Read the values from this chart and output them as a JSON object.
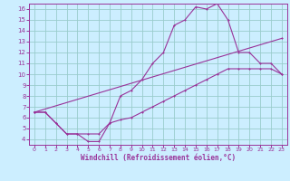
{
  "xlabel": "Windchill (Refroidissement éolien,°C)",
  "xlim": [
    -0.5,
    23.5
  ],
  "ylim": [
    3.5,
    16.5
  ],
  "xticks": [
    0,
    1,
    2,
    3,
    4,
    5,
    6,
    7,
    8,
    9,
    10,
    11,
    12,
    13,
    14,
    15,
    16,
    17,
    18,
    19,
    20,
    21,
    22,
    23
  ],
  "yticks": [
    4,
    5,
    6,
    7,
    8,
    9,
    10,
    11,
    12,
    13,
    14,
    15,
    16
  ],
  "bg_color": "#cceeff",
  "line_color": "#993399",
  "grid_color": "#99cccc",
  "curve1_x": [
    0,
    1,
    2,
    3,
    4,
    5,
    6,
    7,
    8,
    9,
    10,
    11,
    12,
    13,
    14,
    15,
    16,
    17,
    18,
    19,
    20,
    21,
    22,
    23
  ],
  "curve1_y": [
    6.5,
    6.5,
    5.5,
    4.5,
    4.5,
    3.8,
    3.8,
    5.5,
    8.0,
    8.5,
    9.5,
    11.0,
    12.0,
    14.5,
    15.0,
    16.2,
    16.0,
    16.5,
    15.0,
    12.0,
    12.0,
    11.0,
    11.0,
    10.0
  ],
  "curve2_x": [
    0,
    1,
    2,
    3,
    4,
    5,
    6,
    7,
    8,
    9,
    10,
    11,
    12,
    13,
    14,
    15,
    16,
    17,
    18,
    19,
    20,
    21,
    22,
    23
  ],
  "curve2_y": [
    6.5,
    6.5,
    5.5,
    4.5,
    4.5,
    4.5,
    4.5,
    5.5,
    5.8,
    6.0,
    6.5,
    7.0,
    7.5,
    8.0,
    8.5,
    9.0,
    9.5,
    10.0,
    10.5,
    10.5,
    10.5,
    10.5,
    10.5,
    10.0
  ],
  "curve3_x": [
    0,
    23
  ],
  "curve3_y": [
    6.5,
    13.3
  ]
}
